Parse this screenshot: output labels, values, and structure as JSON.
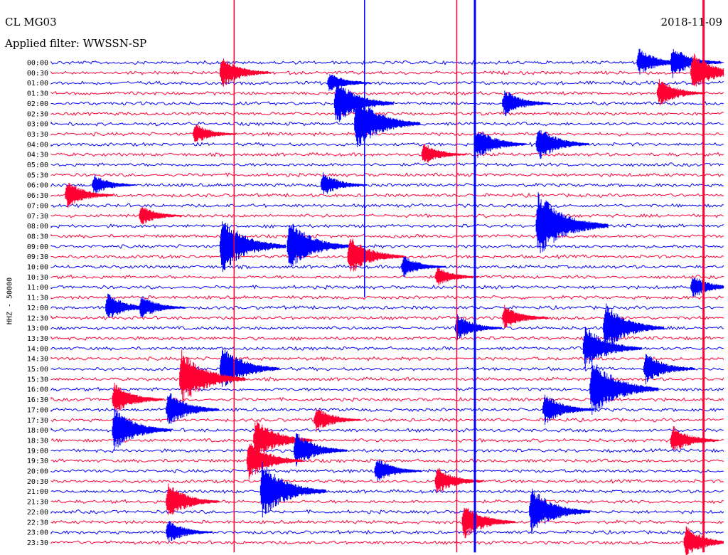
{
  "header": {
    "station": "CL MG03",
    "filter": "Applied filter: WWSSN-SP",
    "date": "2018-11-09"
  },
  "chart_data": {
    "type": "line",
    "title": "CL MG03",
    "subtitle": "Applied filter: WWSSN-SP",
    "date": "2018-11-09",
    "ylabel": "HHZ - 50000",
    "xlabel": "",
    "colors": {
      "odd_rows": "#0000ff",
      "even_rows": "#ff0033",
      "background": "#ffffff"
    },
    "row_labels": [
      "00:00",
      "00:30",
      "01:00",
      "01:30",
      "02:00",
      "02:30",
      "03:00",
      "03:30",
      "04:00",
      "04:30",
      "05:00",
      "05:30",
      "06:00",
      "06:30",
      "07:00",
      "07:30",
      "08:00",
      "08:30",
      "09:00",
      "09:30",
      "10:00",
      "10:30",
      "11:00",
      "11:30",
      "12:00",
      "12:30",
      "13:00",
      "13:30",
      "14:00",
      "14:30",
      "15:00",
      "15:30",
      "16:00",
      "16:30",
      "17:00",
      "17:30",
      "18:00",
      "18:30",
      "19:00",
      "19:30",
      "20:00",
      "20:30",
      "21:00",
      "21:30",
      "22:00",
      "22:30",
      "23:00",
      "23:30"
    ],
    "events": [
      {
        "row": 0,
        "x": 0.87,
        "amp": 1.6,
        "dir": "up"
      },
      {
        "row": 0,
        "x": 0.92,
        "amp": 1.8,
        "dir": "up"
      },
      {
        "row": 1,
        "x": 0.25,
        "amp": 1.8,
        "dir": "up"
      },
      {
        "row": 1,
        "x": 0.95,
        "amp": 2.2,
        "dir": "up"
      },
      {
        "row": 2,
        "x": 0.41,
        "amp": 1.2,
        "dir": "up"
      },
      {
        "row": 3,
        "x": 0.9,
        "amp": 1.6,
        "dir": "up"
      },
      {
        "row": 4,
        "x": 0.42,
        "amp": 2.5,
        "dir": "up"
      },
      {
        "row": 4,
        "x": 0.67,
        "amp": 1.6,
        "dir": "up"
      },
      {
        "row": 6,
        "x": 0.45,
        "amp": 3.0,
        "dir": "up"
      },
      {
        "row": 7,
        "x": 0.21,
        "amp": 1.2,
        "dir": "up"
      },
      {
        "row": 8,
        "x": 0.63,
        "amp": 1.8,
        "dir": "up"
      },
      {
        "row": 8,
        "x": 0.72,
        "amp": 2.0,
        "dir": "up"
      },
      {
        "row": 9,
        "x": 0.55,
        "amp": 1.3,
        "dir": "up"
      },
      {
        "row": 12,
        "x": 0.4,
        "amp": 1.4,
        "dir": "up"
      },
      {
        "row": 12,
        "x": 0.06,
        "amp": 1.2,
        "dir": "up"
      },
      {
        "row": 13,
        "x": 0.02,
        "amp": 1.6,
        "dir": "up"
      },
      {
        "row": 15,
        "x": 0.13,
        "amp": 1.2,
        "dir": "up"
      },
      {
        "row": 16,
        "x": 0.72,
        "amp": 3.5,
        "dir": "up"
      },
      {
        "row": 18,
        "x": 0.25,
        "amp": 3.0,
        "dir": "up"
      },
      {
        "row": 18,
        "x": 0.35,
        "amp": 2.8,
        "dir": "up"
      },
      {
        "row": 19,
        "x": 0.44,
        "amp": 2.2,
        "dir": "up"
      },
      {
        "row": 20,
        "x": 0.52,
        "amp": 1.3,
        "dir": "up"
      },
      {
        "row": 21,
        "x": 0.57,
        "amp": 1.2,
        "dir": "up"
      },
      {
        "row": 22,
        "x": 0.95,
        "amp": 1.4,
        "dir": "up"
      },
      {
        "row": 24,
        "x": 0.08,
        "amp": 1.6,
        "dir": "up"
      },
      {
        "row": 24,
        "x": 0.13,
        "amp": 1.4,
        "dir": "up"
      },
      {
        "row": 25,
        "x": 0.67,
        "amp": 1.4,
        "dir": "up"
      },
      {
        "row": 26,
        "x": 0.6,
        "amp": 1.5,
        "dir": "up"
      },
      {
        "row": 26,
        "x": 0.82,
        "amp": 2.6,
        "dir": "up"
      },
      {
        "row": 28,
        "x": 0.79,
        "amp": 2.4,
        "dir": "up"
      },
      {
        "row": 30,
        "x": 0.25,
        "amp": 2.5,
        "dir": "up"
      },
      {
        "row": 30,
        "x": 0.88,
        "amp": 1.8,
        "dir": "up"
      },
      {
        "row": 31,
        "x": 0.19,
        "amp": 3.0,
        "dir": "up"
      },
      {
        "row": 32,
        "x": 0.8,
        "amp": 3.2,
        "dir": "up"
      },
      {
        "row": 33,
        "x": 0.09,
        "amp": 1.8,
        "dir": "up"
      },
      {
        "row": 34,
        "x": 0.17,
        "amp": 2.0,
        "dir": "up"
      },
      {
        "row": 34,
        "x": 0.73,
        "amp": 1.8,
        "dir": "up"
      },
      {
        "row": 35,
        "x": 0.39,
        "amp": 1.5,
        "dir": "up"
      },
      {
        "row": 36,
        "x": 0.09,
        "amp": 2.4,
        "dir": "up"
      },
      {
        "row": 37,
        "x": 0.3,
        "amp": 2.4,
        "dir": "up"
      },
      {
        "row": 37,
        "x": 0.92,
        "amp": 1.6,
        "dir": "up"
      },
      {
        "row": 38,
        "x": 0.36,
        "amp": 2.0,
        "dir": "up"
      },
      {
        "row": 39,
        "x": 0.29,
        "amp": 2.2,
        "dir": "up"
      },
      {
        "row": 40,
        "x": 0.48,
        "amp": 1.5,
        "dir": "up"
      },
      {
        "row": 41,
        "x": 0.57,
        "amp": 1.6,
        "dir": "up"
      },
      {
        "row": 42,
        "x": 0.31,
        "amp": 3.0,
        "dir": "up"
      },
      {
        "row": 43,
        "x": 0.17,
        "amp": 2.0,
        "dir": "up"
      },
      {
        "row": 44,
        "x": 0.71,
        "amp": 2.6,
        "dir": "up"
      },
      {
        "row": 45,
        "x": 0.61,
        "amp": 2.0,
        "dir": "up"
      },
      {
        "row": 46,
        "x": 0.17,
        "amp": 1.4,
        "dir": "up"
      },
      {
        "row": 47,
        "x": 0.94,
        "amp": 1.8,
        "dir": "up"
      }
    ],
    "spikes": [
      {
        "x": 0.272,
        "rows": [
          0,
          47
        ]
      },
      {
        "x": 0.466,
        "rows": [
          0,
          22
        ]
      },
      {
        "x": 0.603,
        "rows": [
          0,
          47
        ]
      },
      {
        "x": 0.63,
        "rows": [
          0,
          47
        ]
      },
      {
        "x": 0.97,
        "rows": [
          0,
          47
        ]
      }
    ]
  }
}
